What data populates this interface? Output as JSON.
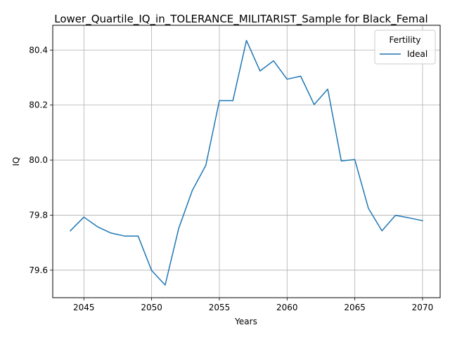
{
  "chart_data": {
    "type": "line",
    "title": "Lower_Quartile_IQ_in_TOLERANCE_MILITARIST_Sample for Black_Femal",
    "xlabel": "Years",
    "ylabel": "IQ",
    "xlim": [
      2042.7,
      2071.3
    ],
    "ylim": [
      79.5,
      80.49
    ],
    "xticks": [
      2045,
      2050,
      2055,
      2060,
      2065,
      2070
    ],
    "yticks": [
      79.6,
      79.8,
      80.0,
      80.2,
      80.4
    ],
    "grid": true,
    "legend": {
      "title": "Fertility",
      "placement": "top-right"
    },
    "series": [
      {
        "name": "Ideal",
        "color": "#1f77b4",
        "x": [
          2044,
          2045,
          2046,
          2047,
          2048,
          2049,
          2050,
          2051,
          2052,
          2053,
          2054,
          2055,
          2056,
          2057,
          2058,
          2059,
          2060,
          2061,
          2062,
          2063,
          2064,
          2065,
          2066,
          2067,
          2068,
          2069,
          2070
        ],
        "y": [
          79.743,
          79.793,
          79.758,
          79.735,
          79.724,
          79.724,
          79.599,
          79.546,
          79.752,
          79.889,
          79.981,
          80.216,
          80.216,
          80.435,
          80.324,
          80.361,
          80.294,
          80.305,
          80.202,
          80.258,
          79.997,
          80.002,
          79.825,
          79.743,
          79.799,
          79.79,
          79.78
        ]
      }
    ]
  }
}
